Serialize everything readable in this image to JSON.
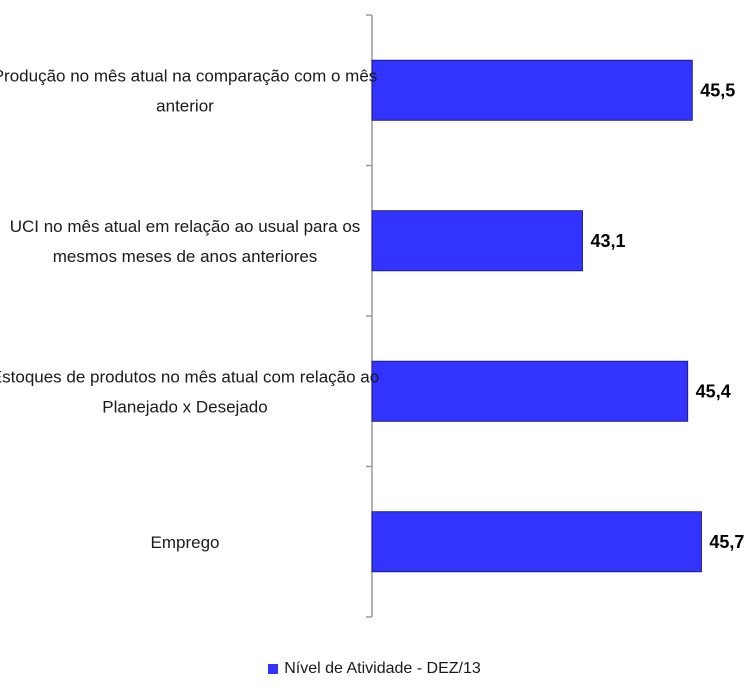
{
  "chart_data": {
    "type": "bar",
    "orientation": "horizontal",
    "categories": [
      [
        "Produção no mês atual na comparação com o mês",
        "anterior"
      ],
      [
        "UCI no mês atual em relação ao usual para os",
        "mesmos meses de anos anteriores"
      ],
      [
        "Estoques de produtos no mês atual com relação ao",
        "Planejado x Desejado"
      ],
      [
        "Emprego"
      ]
    ],
    "values": [
      45.5,
      43.1,
      45.4,
      45.7
    ],
    "value_labels": [
      "45,5",
      "43,1",
      "45,4",
      "45,7"
    ],
    "series": [
      {
        "name": "Nível de Atividade - DEZ/13",
        "color": "#3333ff"
      }
    ],
    "xlim": [
      38.5,
      46.5
    ],
    "x_axis_visible": false,
    "grid": false,
    "legend": "bottom"
  },
  "legend": {
    "label": "Nível de Atividade - DEZ/13",
    "color": "#3333ff"
  }
}
